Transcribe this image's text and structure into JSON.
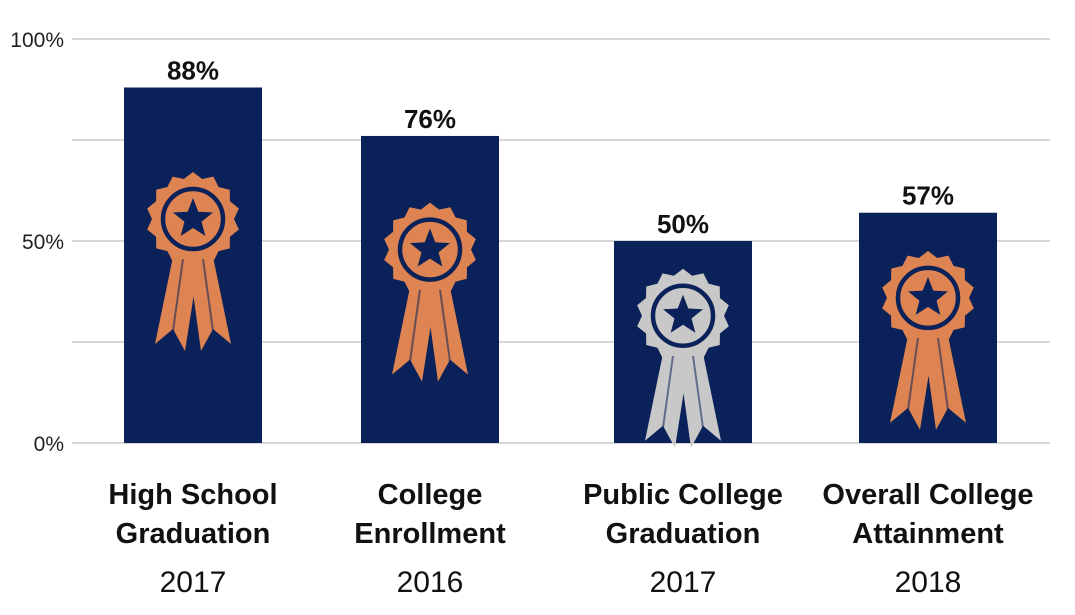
{
  "chart_data": {
    "type": "bar",
    "title": "",
    "xlabel": "",
    "ylabel": "",
    "ylim": [
      0,
      100
    ],
    "yticks": [
      {
        "value": 0,
        "label": "0%"
      },
      {
        "value": 50,
        "label": "50%"
      },
      {
        "value": 100,
        "label": "100%"
      }
    ],
    "grid": true,
    "categories": [
      {
        "line1": "High School",
        "line2": "Graduation",
        "year": "2017"
      },
      {
        "line1": "College",
        "line2": "Enrollment",
        "year": "2016"
      },
      {
        "line1": "Public College",
        "line2": "Graduation",
        "year": "2017"
      },
      {
        "line1": "Overall College",
        "line2": "Attainment",
        "year": "2018"
      }
    ],
    "values": [
      88,
      76,
      50,
      57
    ],
    "value_labels": [
      "88%",
      "76%",
      "50%",
      "57%"
    ],
    "ribbon_icons": [
      "award-ribbon-icon",
      "award-ribbon-icon",
      "award-ribbon-icon",
      "award-ribbon-icon"
    ],
    "ribbon_colors": [
      "#dd8452",
      "#dd8452",
      "#c8c8c8",
      "#dd8452"
    ]
  },
  "colors": {
    "bar": "#0b2159",
    "grid": "#bfbfbf",
    "text": "#111111"
  }
}
